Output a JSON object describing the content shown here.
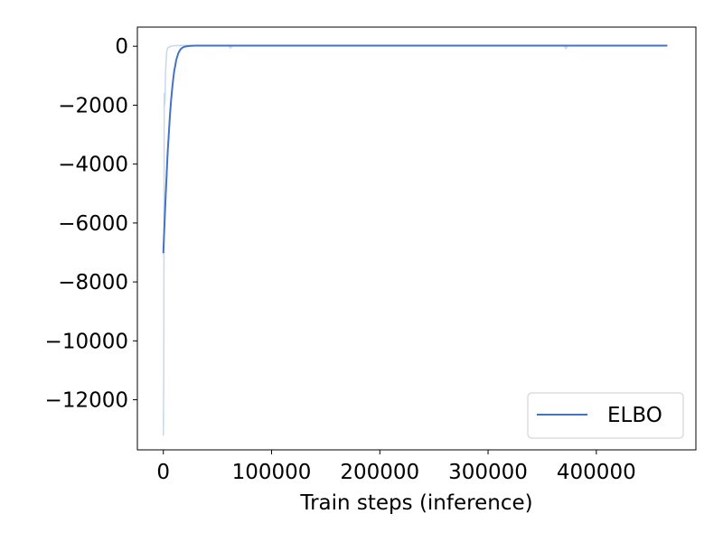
{
  "chart_data": {
    "type": "line",
    "title": "",
    "xlabel": "Train steps (inference)",
    "ylabel": "",
    "xlim": [
      -24000,
      492000
    ],
    "ylim": [
      -13700,
      650
    ],
    "x_ticks": [
      0,
      100000,
      200000,
      300000,
      400000
    ],
    "x_tick_labels": [
      "0",
      "100000",
      "200000",
      "300000",
      "400000"
    ],
    "y_ticks": [
      0,
      -2000,
      -4000,
      -6000,
      -8000,
      -10000,
      -12000
    ],
    "y_tick_labels": [
      "0",
      "−2000",
      "−4000",
      "−6000",
      "−8000",
      "−10000",
      "−12000"
    ],
    "grid": false,
    "legend": {
      "position": "lower-right",
      "entries": [
        "ELBO"
      ]
    },
    "series": [
      {
        "name": "",
        "role": "raw",
        "color": "#c6d9ec",
        "x": [
          0,
          400,
          800,
          1200,
          1600,
          2000,
          3000,
          4000,
          6000,
          10000,
          20000,
          60000,
          62000,
          64000,
          100000,
          200000,
          300000,
          370000,
          372000,
          374000,
          400000,
          465000
        ],
        "y": [
          -13200,
          -11000,
          -1600,
          -2000,
          -1800,
          -900,
          -200,
          -60,
          -10,
          20,
          30,
          30,
          -60,
          30,
          30,
          30,
          30,
          30,
          -80,
          30,
          30,
          30
        ]
      },
      {
        "name": "ELBO",
        "role": "smoothed",
        "color": "#4472c4",
        "x": [
          0,
          1000,
          2000,
          3000,
          4000,
          5000,
          6000,
          7000,
          8000,
          9000,
          10000,
          12000,
          14000,
          16000,
          18000,
          20000,
          25000,
          30000,
          100000,
          200000,
          300000,
          400000,
          465000
        ],
        "y": [
          -7000,
          -6100,
          -5200,
          -4400,
          -3600,
          -3000,
          -2400,
          -1900,
          -1500,
          -1150,
          -850,
          -450,
          -220,
          -100,
          -40,
          -10,
          15,
          20,
          20,
          20,
          20,
          20,
          20
        ]
      }
    ]
  }
}
